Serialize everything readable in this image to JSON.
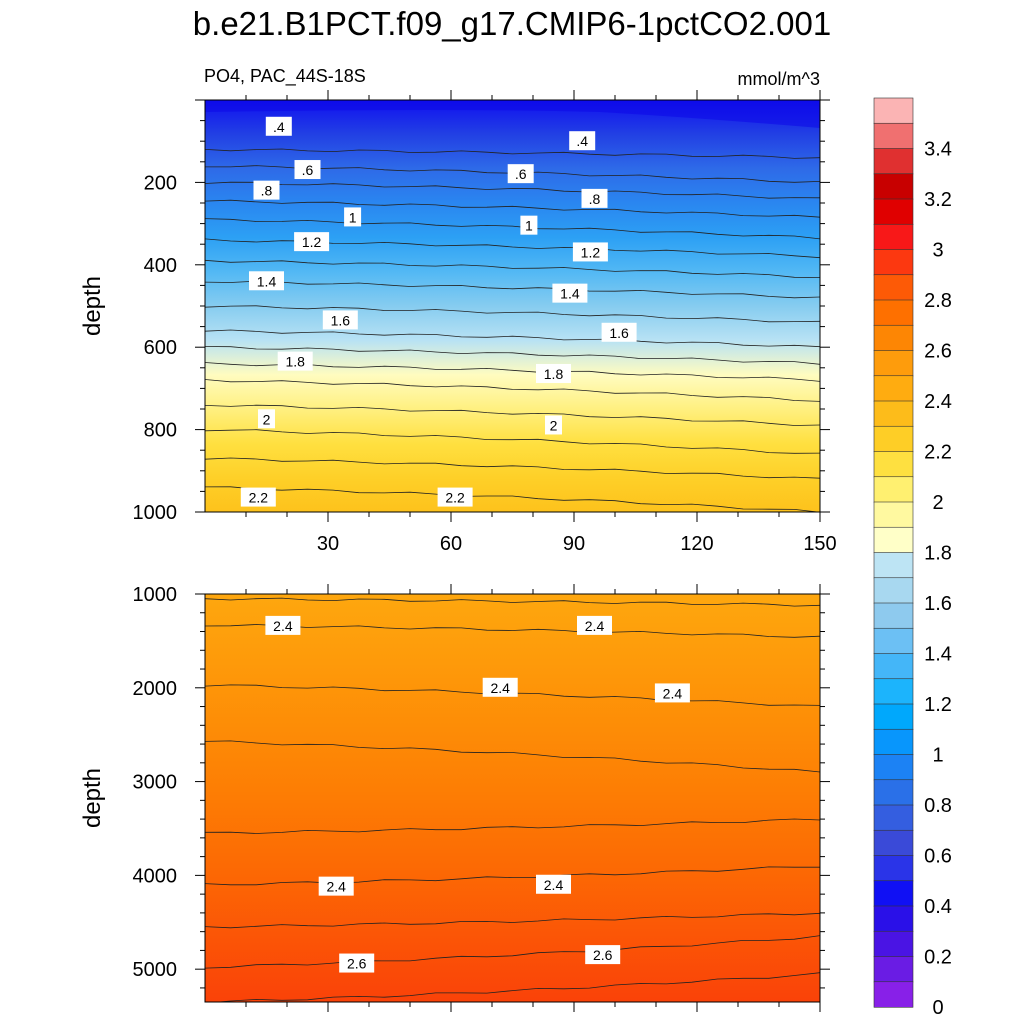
{
  "title": "b.e21.B1PCT.f09_g17.CMIP6-1pctCO2.001",
  "subtitle_left": "PO4, PAC_44S-18S",
  "subtitle_right": "mmol/m^3",
  "chart_data": [
    {
      "type": "contour",
      "panel": "upper",
      "xlabel": "",
      "ylabel": "depth",
      "xlim": [
        0,
        150
      ],
      "ylim": [
        1000,
        0
      ],
      "x_ticks": [
        "30",
        "60",
        "90",
        "120",
        "150"
      ],
      "y_ticks": [
        "200",
        "400",
        "600",
        "800",
        "1000"
      ],
      "contour_levels": [
        {
          "depth_left": 120,
          "depth_right": 140
        },
        {
          "depth_left": 160,
          "depth_right": 200
        },
        {
          "depth_left": 200,
          "depth_right": 240
        },
        {
          "depth_left": 245,
          "depth_right": 285
        },
        {
          "depth_left": 290,
          "depth_right": 335
        },
        {
          "depth_left": 340,
          "depth_right": 380
        },
        {
          "depth_left": 390,
          "depth_right": 430
        },
        {
          "depth_left": 440,
          "depth_right": 480
        },
        {
          "depth_left": 500,
          "depth_right": 540
        },
        {
          "depth_left": 560,
          "depth_right": 600
        },
        {
          "depth_left": 600,
          "depth_right": 640
        },
        {
          "depth_left": 640,
          "depth_right": 680
        },
        {
          "depth_left": 680,
          "depth_right": 730
        },
        {
          "depth_left": 740,
          "depth_right": 790
        },
        {
          "depth_left": 800,
          "depth_right": 860
        },
        {
          "depth_left": 870,
          "depth_right": 920
        },
        {
          "depth_left": 940,
          "depth_right": 1000
        }
      ],
      "labels": [
        {
          "text": ".4",
          "x": 18,
          "depth": 65
        },
        {
          "text": ".4",
          "x": 92,
          "depth": 100
        },
        {
          "text": ".6",
          "x": 25,
          "depth": 170
        },
        {
          "text": ".6",
          "x": 77,
          "depth": 180
        },
        {
          "text": ".8",
          "x": 15,
          "depth": 220
        },
        {
          "text": ".8",
          "x": 95,
          "depth": 240
        },
        {
          "text": "1",
          "x": 36,
          "depth": 285
        },
        {
          "text": "1",
          "x": 79,
          "depth": 305
        },
        {
          "text": "1.2",
          "x": 26,
          "depth": 345
        },
        {
          "text": "1.2",
          "x": 94,
          "depth": 370
        },
        {
          "text": "1.4",
          "x": 15,
          "depth": 440
        },
        {
          "text": "1.4",
          "x": 89,
          "depth": 470
        },
        {
          "text": "1.6",
          "x": 33,
          "depth": 535
        },
        {
          "text": "1.6",
          "x": 101,
          "depth": 565
        },
        {
          "text": "1.8",
          "x": 22,
          "depth": 635
        },
        {
          "text": "1.8",
          "x": 85,
          "depth": 665
        },
        {
          "text": "2",
          "x": 15,
          "depth": 775
        },
        {
          "text": "2",
          "x": 85,
          "depth": 790
        },
        {
          "text": "2.2",
          "x": 13,
          "depth": 965
        },
        {
          "text": "2.2",
          "x": 61,
          "depth": 965
        }
      ]
    },
    {
      "type": "contour",
      "panel": "lower",
      "xlabel": "",
      "ylabel": "depth",
      "xlim": [
        0,
        150
      ],
      "ylim": [
        5350,
        1000
      ],
      "y_ticks": [
        "1000",
        "2000",
        "3000",
        "4000",
        "5000"
      ],
      "contour_levels": [
        {
          "depth_left": 1050,
          "depth_right": 1120
        },
        {
          "depth_left": 1330,
          "depth_right": 1460
        },
        {
          "depth_left": 1970,
          "depth_right": 2200
        },
        {
          "depth_left": 2570,
          "depth_right": 2900
        },
        {
          "depth_left": 3550,
          "depth_right": 3400
        },
        {
          "depth_left": 4100,
          "depth_right": 3900
        },
        {
          "depth_left": 4550,
          "depth_right": 4400
        },
        {
          "depth_left": 4980,
          "depth_right": 4650
        },
        {
          "depth_left": 5350,
          "depth_right": 5050
        }
      ],
      "labels": [
        {
          "text": "2.4",
          "x": 19,
          "depth": 1340
        },
        {
          "text": "2.4",
          "x": 95,
          "depth": 1340
        },
        {
          "text": "2.4",
          "x": 72,
          "depth": 2000
        },
        {
          "text": "2.4",
          "x": 114,
          "depth": 2060
        },
        {
          "text": "2.4",
          "x": 32,
          "depth": 4120
        },
        {
          "text": "2.4",
          "x": 85,
          "depth": 4100
        },
        {
          "text": "2.6",
          "x": 37,
          "depth": 4940
        },
        {
          "text": "2.6",
          "x": 97,
          "depth": 4850
        }
      ]
    }
  ],
  "colorbar": {
    "labels": [
      "3.4",
      "3.2",
      "3",
      "2.8",
      "2.6",
      "2.4",
      "2.2",
      "2",
      "1.8",
      "1.6",
      "1.4",
      "1.2",
      "1",
      "0.8",
      "0.6",
      "0.4",
      "0.2",
      "0"
    ],
    "colors_top_to_bottom": [
      "#fbb4b4",
      "#f07070",
      "#e03030",
      "#c80000",
      "#e00000",
      "#f81818",
      "#fc3810",
      "#fd5a06",
      "#fe7000",
      "#fd8604",
      "#fe9c0c",
      "#ffac10",
      "#fdbc1a",
      "#fece26",
      "#fee040",
      "#fff070",
      "#fff9a0",
      "#ffffc8",
      "#bde4f4",
      "#a8d8f0",
      "#8ecaee",
      "#6cc0f4",
      "#44b6f8",
      "#1cb4fc",
      "#00a8fc",
      "#0896fc",
      "#1c82f4",
      "#2a70e8",
      "#345ee0",
      "#3a4ad8",
      "#2a34e8",
      "#1010f4",
      "#2a10e8",
      "#4a14e4",
      "#6a1ce4",
      "#8820e8"
    ]
  },
  "colors": {
    "upper_gradient": [
      "#1010f0",
      "#2240e4",
      "#2e6ae8",
      "#2a86f0",
      "#2ca0f4",
      "#52b8f4",
      "#86ccf0",
      "#b8e2f4",
      "#fffcc0",
      "#fff080",
      "#ffe040",
      "#fed028",
      "#fdc21c"
    ],
    "lower_gradient": [
      "#fea70e",
      "#fe9a0a",
      "#fd8c06",
      "#fd7c04",
      "#fc6a04",
      "#fb5606",
      "#fa4208"
    ]
  }
}
